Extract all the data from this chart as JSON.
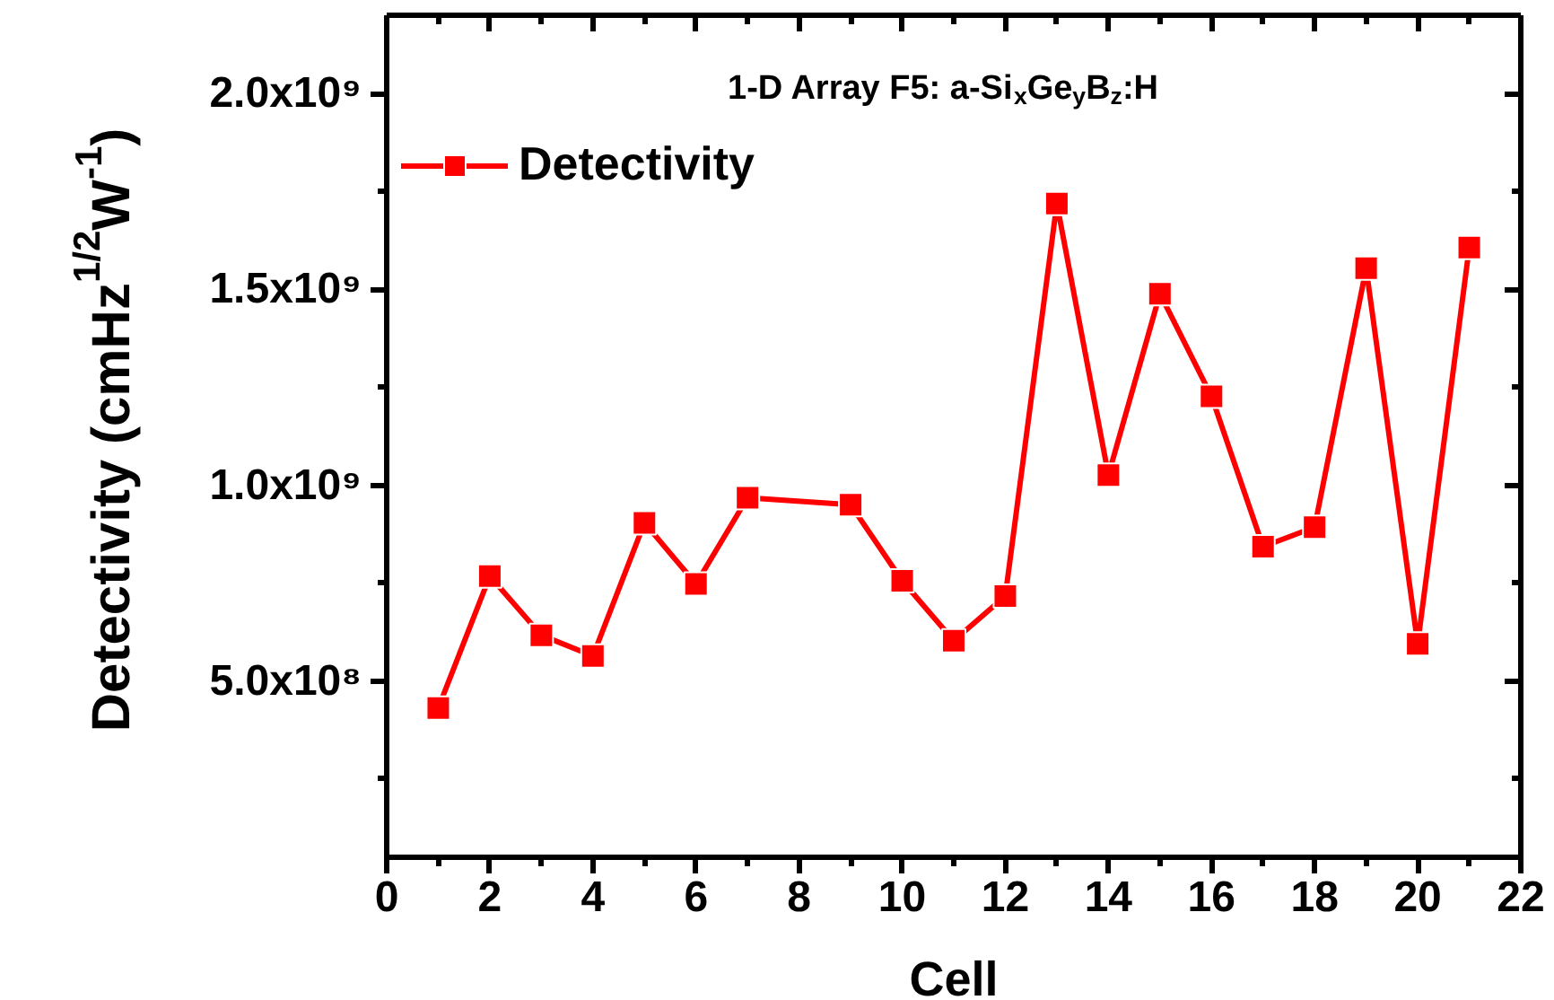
{
  "chart_data": {
    "type": "line",
    "title": "1-D Array F5: a-Si$_{x}$Ge$_{y}$B$_{z}$:H",
    "xlabel": "Cell",
    "ylabel": "Detectivity (cmHz$^{1/2}$W$^{-1}$)",
    "x": [
      1,
      2,
      3,
      4,
      5,
      6,
      7,
      9,
      10,
      11,
      12,
      13,
      14,
      15,
      16,
      17,
      18,
      19,
      20,
      21
    ],
    "series": [
      {
        "name": "Detectivity",
        "color": "#ff0000",
        "values": [
          431000000,
          768000000,
          617000000,
          564000000,
          904000000,
          748000000,
          968000000,
          950000000,
          756000000,
          603000000,
          717000000,
          1719000000,
          1026000000,
          1489000000,
          1227000000,
          843000000,
          893000000,
          1554000000,
          595000000,
          1607000000
        ]
      }
    ],
    "xlim": [
      0,
      22
    ],
    "xticks": [
      0,
      2,
      4,
      6,
      8,
      10,
      12,
      14,
      16,
      18,
      20,
      22
    ],
    "ylim": [
      50000000,
      2200000000
    ],
    "yticks": [
      {
        "value": 500000000,
        "label": "5.0x10⁸"
      },
      {
        "value": 1000000000,
        "label": "1.0x10⁹"
      },
      {
        "value": 1500000000,
        "label": "1.5x10⁹"
      },
      {
        "value": 2000000000,
        "label": "2.0x10⁹"
      }
    ],
    "legend": "top left",
    "marker": "square",
    "line_style": "solid"
  }
}
